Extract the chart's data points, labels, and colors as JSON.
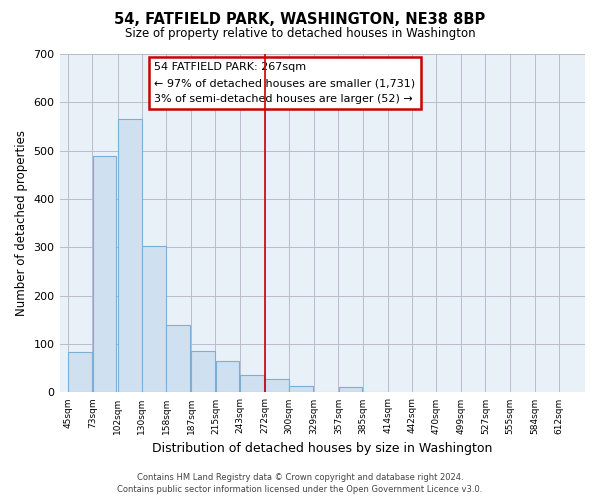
{
  "title": "54, FATFIELD PARK, WASHINGTON, NE38 8BP",
  "subtitle": "Size of property relative to detached houses in Washington",
  "xlabel": "Distribution of detached houses by size in Washington",
  "ylabel": "Number of detached properties",
  "bar_left_edges": [
    45,
    73,
    102,
    130,
    158,
    187,
    215,
    243,
    272,
    300,
    329,
    357,
    385
  ],
  "bar_heights": [
    83,
    488,
    565,
    302,
    139,
    86,
    65,
    36,
    28,
    14,
    0,
    12,
    0
  ],
  "bin_width": 28,
  "bar_color": "#cfe0f0",
  "bar_edge_color": "#7bafd4",
  "axes_bg_color": "#e8f0f8",
  "vline_x": 272,
  "vline_color": "#cc0000",
  "ylim": [
    0,
    700
  ],
  "yticks": [
    0,
    100,
    200,
    300,
    400,
    500,
    600,
    700
  ],
  "xtick_labels": [
    "45sqm",
    "73sqm",
    "102sqm",
    "130sqm",
    "158sqm",
    "187sqm",
    "215sqm",
    "243sqm",
    "272sqm",
    "300sqm",
    "329sqm",
    "357sqm",
    "385sqm",
    "414sqm",
    "442sqm",
    "470sqm",
    "499sqm",
    "527sqm",
    "555sqm",
    "584sqm",
    "612sqm"
  ],
  "xtick_positions": [
    45,
    73,
    102,
    130,
    158,
    187,
    215,
    243,
    272,
    300,
    329,
    357,
    385,
    414,
    442,
    470,
    499,
    527,
    555,
    584,
    612
  ],
  "annotation_title": "54 FATFIELD PARK: 267sqm",
  "annotation_line1": "← 97% of detached houses are smaller (1,731)",
  "annotation_line2": "3% of semi-detached houses are larger (52) →",
  "footer_line1": "Contains HM Land Registry data © Crown copyright and database right 2024.",
  "footer_line2": "Contains public sector information licensed under the Open Government Licence v3.0.",
  "background_color": "#ffffff",
  "grid_color": "#bbbbcc"
}
